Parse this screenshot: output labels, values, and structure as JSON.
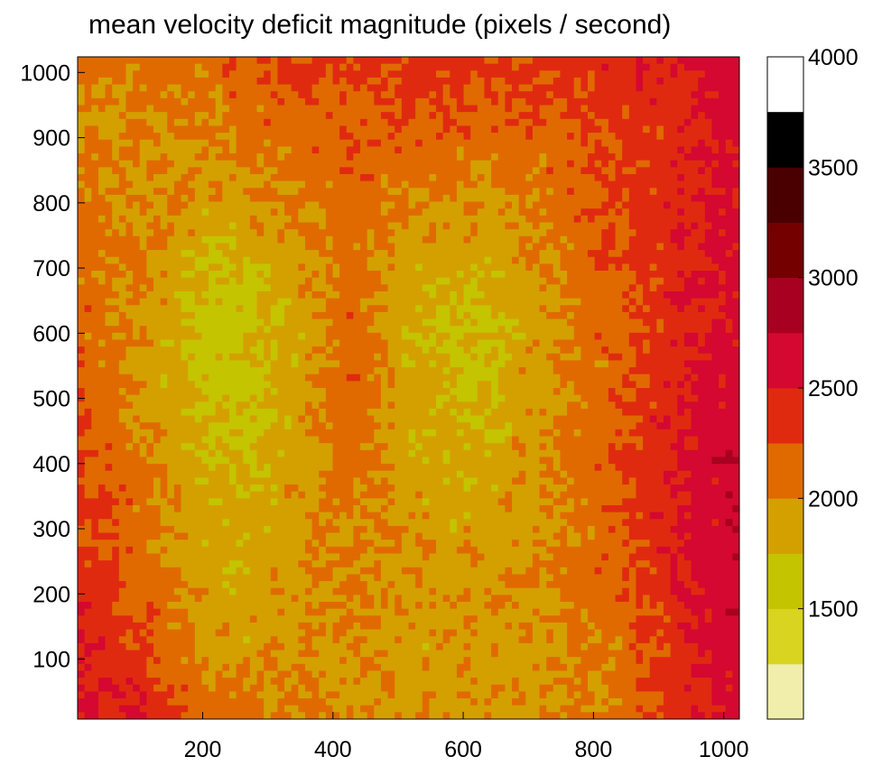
{
  "chart_data": {
    "type": "heatmap",
    "subtype": "filled-contour",
    "title": "mean velocity deficit magnitude  (pixels / second)",
    "xlabel": "",
    "ylabel": "",
    "xlim": [
      8,
      1024
    ],
    "ylim": [
      8,
      1024
    ],
    "x_ticks": [
      200,
      400,
      600,
      800,
      1000
    ],
    "y_ticks": [
      100,
      200,
      300,
      400,
      500,
      600,
      700,
      800,
      900,
      1000
    ],
    "x_tick_labels": [
      "200",
      "400",
      "600",
      "800",
      "1000"
    ],
    "y_tick_labels": [
      "100",
      "200",
      "300",
      "400",
      "500",
      "600",
      "700",
      "800",
      "900",
      "1000"
    ],
    "colorbar": {
      "range": [
        1000,
        4000
      ],
      "levels": [
        1000,
        1250,
        1500,
        1750,
        2000,
        2250,
        2500,
        2750,
        3000,
        3250,
        3500,
        3750,
        4000
      ],
      "colors": [
        "#f0eeaa",
        "#d8d420",
        "#c4c400",
        "#d4a000",
        "#e06a00",
        "#e02a10",
        "#d40830",
        "#a80020",
        "#740000",
        "#4a0000",
        "#000000"
      ],
      "tick_values": [
        1500,
        2000,
        2500,
        3000,
        3500,
        4000
      ],
      "tick_labels": [
        "1500",
        "2000",
        "2500",
        "3000",
        "3500",
        "4000"
      ]
    },
    "field_approximation": {
      "description_of_structure": "high values near left and right edges and corners; low-value hotspots near (260,560) and (570,520); ridge near x=450",
      "grid": {
        "x": [
          8,
          112,
          216,
          320,
          424,
          528,
          632,
          736,
          840,
          944,
          1024
        ],
        "y": [
          8,
          112,
          216,
          320,
          424,
          528,
          632,
          736,
          840,
          944,
          1024
        ],
        "values": [
          [
            2600,
            2450,
            2150,
            2050,
            1950,
            1950,
            1950,
            1950,
            2100,
            2400,
            2600
          ],
          [
            2500,
            2300,
            1850,
            1950,
            2000,
            1900,
            1900,
            1950,
            2100,
            2450,
            2650
          ],
          [
            2400,
            2150,
            1850,
            1900,
            2000,
            1950,
            1950,
            2000,
            2150,
            2500,
            2700
          ],
          [
            2350,
            2100,
            1800,
            1850,
            2050,
            1900,
            1900,
            2000,
            2200,
            2550,
            2750
          ],
          [
            2250,
            2000,
            1700,
            1800,
            2150,
            1850,
            1800,
            2000,
            2250,
            2550,
            2700
          ],
          [
            2200,
            1950,
            1650,
            1800,
            2200,
            1800,
            1700,
            1950,
            2200,
            2500,
            2650
          ],
          [
            2150,
            1950,
            1600,
            1750,
            2150,
            1800,
            1700,
            1950,
            2200,
            2450,
            2600
          ],
          [
            2100,
            2000,
            1750,
            1900,
            2100,
            1900,
            1850,
            2050,
            2250,
            2450,
            2550
          ],
          [
            2050,
            2000,
            1950,
            2050,
            2150,
            2050,
            2000,
            2100,
            2300,
            2450,
            2550
          ],
          [
            2050,
            2000,
            2050,
            2150,
            2200,
            2250,
            2200,
            2250,
            2350,
            2450,
            2600
          ],
          [
            2100,
            2050,
            2150,
            2250,
            2300,
            2350,
            2350,
            2350,
            2450,
            2500,
            2650
          ]
        ]
      }
    }
  }
}
